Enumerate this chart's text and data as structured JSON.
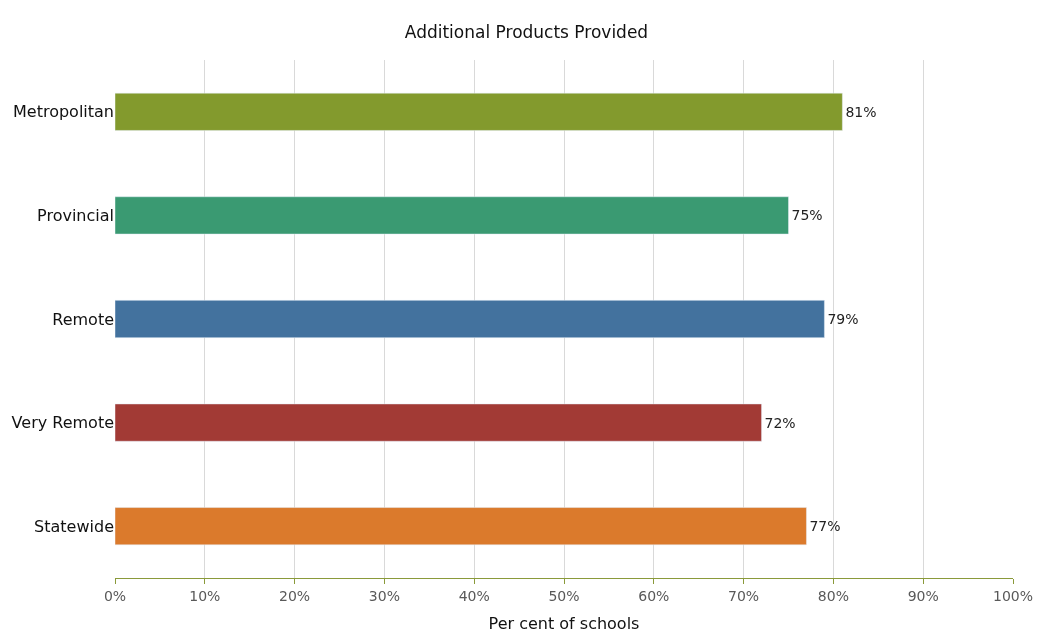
{
  "chart_data": {
    "type": "bar",
    "orientation": "horizontal",
    "title": "Additional Products Provided",
    "xlabel": "Per cent of schools",
    "categories": [
      "Metropolitan",
      "Provincial",
      "Remote",
      "Very Remote",
      "Statewide"
    ],
    "values": [
      81,
      75,
      79,
      72,
      77
    ],
    "colors": [
      "#839a2d",
      "#3a9a72",
      "#43729e",
      "#a23a35",
      "#db7a2c"
    ],
    "value_labels": [
      "81%",
      "75%",
      "79%",
      "72%",
      "77%"
    ],
    "xlim": [
      0,
      100
    ],
    "xticks": [
      {
        "value": 0,
        "label": "0%"
      },
      {
        "value": 10,
        "label": "10%"
      },
      {
        "value": 20,
        "label": "20%"
      },
      {
        "value": 30,
        "label": "30%"
      },
      {
        "value": 40,
        "label": "40%"
      },
      {
        "value": 50,
        "label": "50%"
      },
      {
        "value": 60,
        "label": "60%"
      },
      {
        "value": 70,
        "label": "70%"
      },
      {
        "value": 80,
        "label": "80%"
      },
      {
        "value": 90,
        "label": "90%"
      },
      {
        "value": 100,
        "label": "100%"
      }
    ],
    "grid": "x",
    "legend": false
  }
}
